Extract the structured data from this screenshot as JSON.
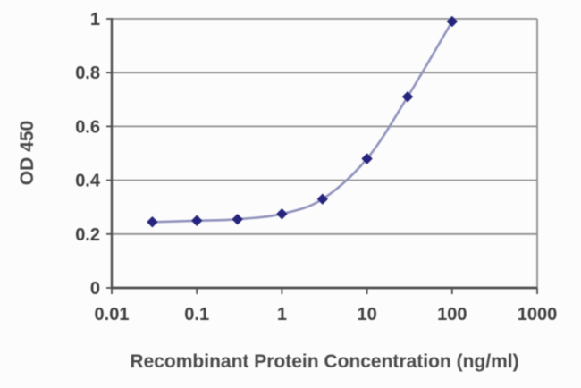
{
  "chart_data": {
    "type": "line",
    "title": "",
    "xlabel": "Recombinant Protein Concentration (ng/ml)",
    "ylabel": "OD 450",
    "x_scale": "log",
    "xlim": [
      0.01,
      1000
    ],
    "ylim": [
      0,
      1
    ],
    "x_ticks": [
      0.01,
      0.1,
      1,
      10,
      100,
      1000
    ],
    "x_tick_labels": [
      "0.01",
      "0.1",
      "1",
      "10",
      "100",
      "1000"
    ],
    "y_ticks": [
      0,
      0.2,
      0.4,
      0.6,
      0.8,
      1
    ],
    "y_tick_labels": [
      "0",
      "0.2",
      "0.4",
      "0.6",
      "0.8",
      "1"
    ],
    "grid": "horizontal",
    "legend": "none",
    "series": [
      {
        "name": "OD 450",
        "x": [
          0.03,
          0.1,
          0.3,
          1,
          3,
          10,
          30,
          100
        ],
        "y": [
          0.245,
          0.25,
          0.255,
          0.275,
          0.33,
          0.48,
          0.71,
          0.99
        ],
        "marker": "diamond"
      }
    ]
  },
  "colors": {
    "background": "#fcfcfc",
    "grid": "#8f8f8f",
    "plot_border": "#8f8f8f",
    "axis": "#4f4f4f",
    "tick_text": "#3f3f3f",
    "label_text": "#4a4a4a",
    "line": "#9193bd",
    "marker": "#26257e"
  }
}
